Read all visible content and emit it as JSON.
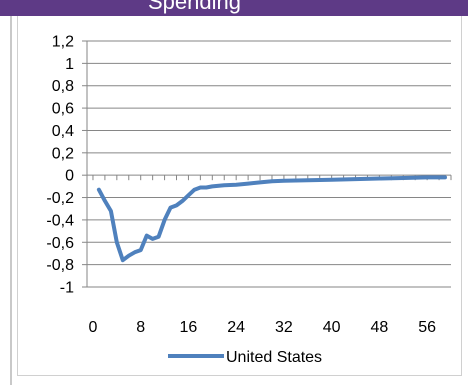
{
  "header": {
    "title_fragment": "Spending"
  },
  "chart_data": {
    "type": "line",
    "title": "",
    "xlabel": "",
    "ylabel": "",
    "xlim": [
      -1,
      60
    ],
    "ylim": [
      -1,
      1.2
    ],
    "yticks": [
      1.2,
      1,
      0.8,
      0.6,
      0.4,
      0.2,
      0,
      -0.2,
      -0.4,
      -0.6,
      -0.8,
      -1
    ],
    "ytick_labels": [
      "1,2",
      "1",
      "0,8",
      "0,6",
      "0,4",
      "0,2",
      "0",
      "-0,2",
      "-0,4",
      "-0,6",
      "-0,8",
      "-1"
    ],
    "xticks": [
      0,
      8,
      16,
      24,
      32,
      40,
      48,
      56
    ],
    "xtick_labels": [
      "0",
      "8",
      "16",
      "24",
      "32",
      "40",
      "48",
      "56"
    ],
    "grid": true,
    "legend_position": "bottom",
    "series": [
      {
        "name": "United States",
        "color": "#4f81bd",
        "x": [
          1,
          2,
          3,
          4,
          5,
          6,
          7,
          8,
          9,
          10,
          11,
          12,
          13,
          14,
          15,
          16,
          17,
          18,
          19,
          20,
          22,
          24,
          26,
          28,
          30,
          32,
          36,
          40,
          44,
          48,
          52,
          56,
          59
        ],
        "values": [
          -0.13,
          -0.23,
          -0.32,
          -0.6,
          -0.76,
          -0.72,
          -0.69,
          -0.67,
          -0.54,
          -0.57,
          -0.55,
          -0.4,
          -0.29,
          -0.27,
          -0.23,
          -0.18,
          -0.13,
          -0.11,
          -0.11,
          -0.1,
          -0.09,
          -0.085,
          -0.075,
          -0.065,
          -0.055,
          -0.05,
          -0.045,
          -0.04,
          -0.035,
          -0.03,
          -0.025,
          -0.02,
          -0.02
        ]
      }
    ]
  }
}
